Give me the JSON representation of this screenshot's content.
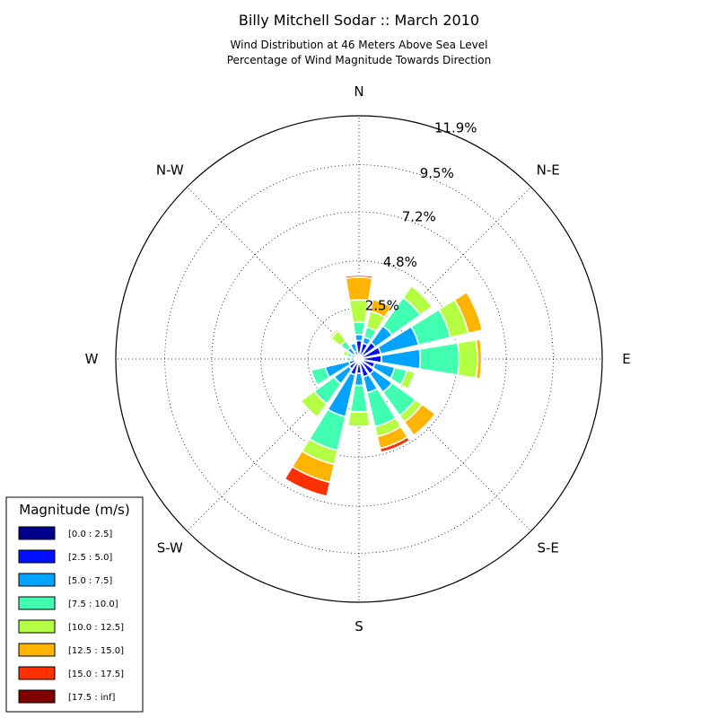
{
  "chart_data": {
    "type": "windrose",
    "title": "Billy Mitchell Sodar :: March 2010",
    "subtitle_lines": [
      "Wind Distribution at 46 Meters Above Sea Level",
      "Percentage of Wind Magnitude Towards Direction"
    ],
    "radial_ticks": [
      "2.5%",
      "4.8%",
      "7.2%",
      "9.5%",
      "11.9%"
    ],
    "radial_tick_values": [
      2.5,
      4.8,
      7.2,
      9.5,
      11.9
    ],
    "r_max": 11.9,
    "direction_labels": [
      {
        "label": "N",
        "angle": 0
      },
      {
        "label": "N-E",
        "angle": 45
      },
      {
        "label": "E",
        "angle": 90
      },
      {
        "label": "S-E",
        "angle": 135
      },
      {
        "label": "S",
        "angle": 180
      },
      {
        "label": "S-W",
        "angle": 225
      },
      {
        "label": "W",
        "angle": 270
      },
      {
        "label": "N-W",
        "angle": 315
      }
    ],
    "legend": {
      "title": "Magnitude (m/s)",
      "bins": [
        {
          "label": "[0.0 : 2.5]",
          "color": "#00008f"
        },
        {
          "label": "[2.5 : 5.0]",
          "color": "#0010ff"
        },
        {
          "label": "[5.0 : 7.5]",
          "color": "#00a4ff"
        },
        {
          "label": "[7.5 : 10.0]",
          "color": "#40ffb0"
        },
        {
          "label": "[10.0 : 12.5]",
          "color": "#b4ff44"
        },
        {
          "label": "[12.5 : 15.0]",
          "color": "#ffb400"
        },
        {
          "label": "[15.0 : 17.5]",
          "color": "#ff3000"
        },
        {
          "label": "[17.5 : inf]",
          "color": "#800000"
        }
      ]
    },
    "sectors": [
      {
        "angle": 0,
        "cumulative": [
          0.05,
          0.9,
          1.2,
          1.8,
          2.9,
          4.0,
          4.1
        ]
      },
      {
        "angle": 22.5,
        "cumulative": [
          0.05,
          0.8,
          1.1,
          1.6,
          2.4,
          3.0
        ]
      },
      {
        "angle": 45,
        "cumulative": [
          0.05,
          1.0,
          2.0,
          3.7,
          4.4
        ]
      },
      {
        "angle": 67.5,
        "cumulative": [
          0.05,
          1.1,
          3.0,
          4.6,
          5.5,
          6.2
        ]
      },
      {
        "angle": 90,
        "cumulative": [
          0.05,
          1.1,
          3.0,
          4.9,
          5.8,
          6.0
        ]
      },
      {
        "angle": 112.5,
        "cumulative": [
          0.05,
          0.8,
          1.8,
          2.4,
          2.8
        ]
      },
      {
        "angle": 135,
        "cumulative": [
          0.05,
          0.9,
          2.0,
          3.4,
          3.8,
          4.6
        ]
      },
      {
        "angle": 157.5,
        "cumulative": [
          0.05,
          0.9,
          1.7,
          3.4,
          3.9,
          4.5,
          4.7
        ]
      },
      {
        "angle": 180,
        "cumulative": [
          0.05,
          0.7,
          1.3,
          2.6,
          3.3
        ]
      },
      {
        "angle": 202.5,
        "cumulative": [
          0.05,
          0.8,
          2.9,
          4.6,
          5.3,
          6.2,
          6.9
        ]
      },
      {
        "angle": 225,
        "cumulative": [
          0.05,
          0.6,
          1.5,
          2.7,
          3.5
        ]
      },
      {
        "angle": 247.5,
        "cumulative": [
          0.05,
          0.5,
          1.7,
          2.4
        ]
      },
      {
        "angle": 270,
        "cumulative": [
          0.05,
          0.2,
          0.4,
          0.6
        ]
      },
      {
        "angle": 292.5,
        "cumulative": [
          0.05,
          0.2,
          0.4,
          0.6,
          0.8
        ]
      },
      {
        "angle": 315,
        "cumulative": [
          0.05,
          0.3,
          0.7,
          1.1,
          1.7,
          1.8
        ]
      },
      {
        "angle": 337.5,
        "cumulative": [
          0.05,
          0.4,
          0.8
        ]
      }
    ]
  }
}
